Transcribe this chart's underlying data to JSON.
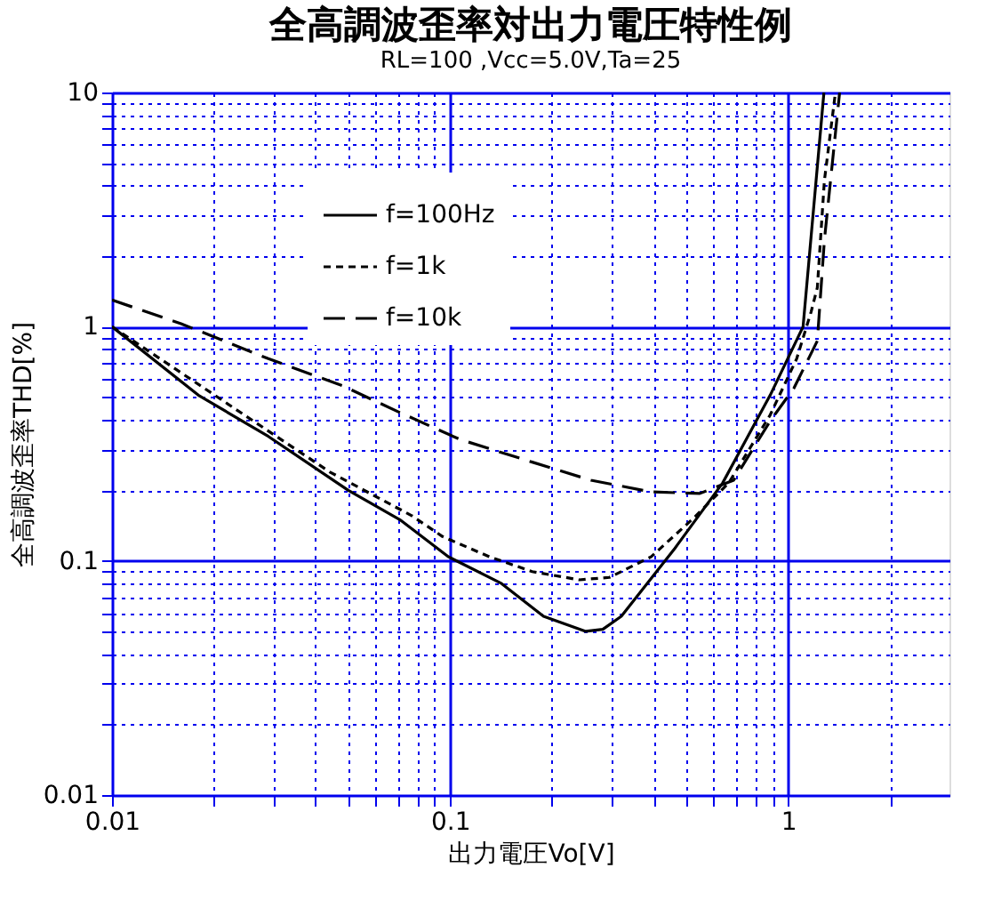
{
  "chart_data": {
    "type": "line",
    "title": "全高調波歪率対出力電圧特性例",
    "subtitle": "RL=100    ,Vcc=5.0V,Ta=25",
    "xlabel": "出力電圧Vo[V]",
    "ylabel": "全高調波歪率THD[%]",
    "log": "xy",
    "grid": true,
    "legend": "top",
    "marker": "none",
    "xlim": [
      0.01,
      3
    ],
    "xticks": [
      0.01,
      {
        "value": 0.02,
        "label": null
      },
      {
        "value": 0.03,
        "label": null
      },
      {
        "value": 0.04,
        "label": null
      },
      {
        "value": 0.05,
        "label": null
      },
      {
        "value": 0.06,
        "label": null
      },
      {
        "value": 0.07,
        "label": null
      },
      {
        "value": 0.08,
        "label": null
      },
      {
        "value": 0.09,
        "label": null
      },
      0.1,
      {
        "value": 0.2,
        "label": null
      },
      {
        "value": 0.3,
        "label": null
      },
      {
        "value": 0.4,
        "label": null
      },
      {
        "value": 0.5,
        "label": null
      },
      {
        "value": 0.6,
        "label": null
      },
      {
        "value": 0.7,
        "label": null
      },
      {
        "value": 0.8,
        "label": null
      },
      {
        "value": 0.9,
        "label": null
      },
      1,
      {
        "value": 2,
        "label": null
      }
    ],
    "ylim": [
      0.01,
      10
    ],
    "yticks": [
      0.01,
      {
        "value": 0.02,
        "label": null
      },
      {
        "value": 0.03,
        "label": null
      },
      {
        "value": 0.04,
        "label": null
      },
      {
        "value": 0.05,
        "label": null
      },
      {
        "value": 0.06,
        "label": null
      },
      {
        "value": 0.07,
        "label": null
      },
      {
        "value": 0.08,
        "label": null
      },
      {
        "value": 0.09,
        "label": null
      },
      0.1,
      {
        "value": 0.2,
        "label": null
      },
      {
        "value": 0.3,
        "label": null
      },
      {
        "value": 0.4,
        "label": null
      },
      {
        "value": 0.5,
        "label": null
      },
      {
        "value": 0.6,
        "label": null
      },
      {
        "value": 0.7,
        "label": null
      },
      {
        "value": 0.8,
        "label": null
      },
      {
        "value": 0.9,
        "label": null
      },
      1,
      {
        "value": 2,
        "label": null
      },
      {
        "value": 3,
        "label": null
      },
      {
        "value": 4,
        "label": null
      },
      {
        "value": 5,
        "label": null
      },
      {
        "value": 6,
        "label": null
      },
      {
        "value": 7,
        "label": null
      },
      {
        "value": 8,
        "label": null
      },
      {
        "value": 9,
        "label": null
      },
      10
    ],
    "series": [
      {
        "name": "f=100Hz",
        "color": "#000000",
        "line_style": "solid",
        "x": [
          0.01,
          0.018,
          0.029,
          0.05,
          0.071,
          0.099,
          0.142,
          0.189,
          0.252,
          0.283,
          0.321,
          0.462,
          0.64,
          0.885,
          1.107,
          1.276
        ],
        "values": [
          1.0,
          0.51,
          0.34,
          0.2,
          0.15,
          0.104,
          0.08,
          0.058,
          0.05,
          0.051,
          0.058,
          0.113,
          0.215,
          0.51,
          1.0,
          10
        ]
      },
      {
        "name": "f=1k",
        "color": "#000000",
        "line_style": "dotted",
        "x": [
          0.01,
          0.044,
          0.077,
          0.095,
          0.131,
          0.175,
          0.241,
          0.296,
          0.393,
          0.522,
          0.667,
          0.885,
          1.06,
          1.17,
          1.22,
          1.28,
          1.38
        ],
        "values": [
          1.0,
          0.24,
          0.156,
          0.127,
          0.104,
          0.09,
          0.083,
          0.085,
          0.104,
          0.151,
          0.215,
          0.42,
          0.73,
          1.16,
          1.47,
          4.2,
          10
        ]
      },
      {
        "name": "f=10k",
        "color": "#000000",
        "line_style": "dashed",
        "x": [
          0.01,
          0.016,
          0.029,
          0.048,
          0.071,
          0.107,
          0.175,
          0.261,
          0.393,
          0.548,
          0.69,
          0.885,
          1.04,
          1.22,
          1.28,
          1.42
        ],
        "values": [
          1.3,
          1.03,
          0.73,
          0.56,
          0.43,
          0.33,
          0.264,
          0.221,
          0.197,
          0.194,
          0.221,
          0.396,
          0.546,
          0.87,
          2.34,
          10
        ]
      }
    ]
  }
}
